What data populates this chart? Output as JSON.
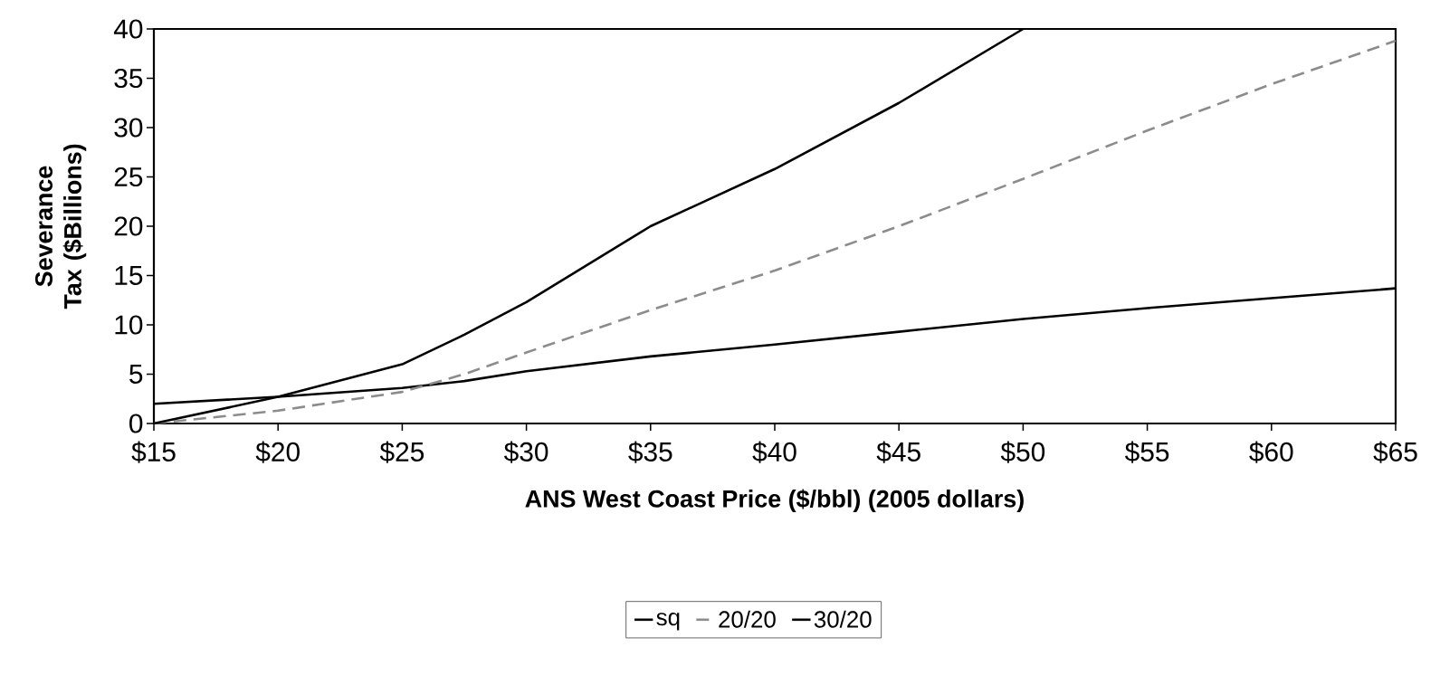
{
  "chart_data": {
    "type": "line",
    "xlabel": "ANS West Coast Price ($/bbl) (2005 dollars)",
    "ylabel": "Severance Tax ($Billions)",
    "x": [
      15,
      20,
      25,
      27.5,
      30,
      35,
      40,
      45,
      50,
      55,
      60,
      65
    ],
    "series": [
      {
        "name": "sq",
        "color": "#000000",
        "line_style": "solid",
        "values": [
          2,
          2.7,
          3.6,
          4.3,
          5.3,
          6.8,
          8,
          9.3,
          10.6,
          11.7,
          12.7,
          13.7
        ]
      },
      {
        "name": "20/20",
        "color": "#8c8c8c",
        "line_style": "dashed",
        "values": [
          0,
          1.3,
          3.2,
          5,
          7.2,
          11.5,
          15.5,
          20,
          24.8,
          29.7,
          34.4,
          38.8
        ]
      },
      {
        "name": "30/20",
        "color": "#000000",
        "line_style": "solid",
        "values": [
          0,
          2.7,
          6,
          9,
          12.3,
          20,
          25.8,
          32.5,
          40,
          null,
          null,
          null
        ]
      }
    ],
    "xlim": [
      15,
      65
    ],
    "ylim": [
      0,
      40
    ],
    "xticks": [
      {
        "value": 15,
        "label": "$15"
      },
      {
        "value": 20,
        "label": "$20"
      },
      {
        "value": 25,
        "label": "$25"
      },
      {
        "value": 30,
        "label": "$30"
      },
      {
        "value": 35,
        "label": "$35"
      },
      {
        "value": 40,
        "label": "$40"
      },
      {
        "value": 45,
        "label": "$45"
      },
      {
        "value": 50,
        "label": "$50"
      },
      {
        "value": 55,
        "label": "$55"
      },
      {
        "value": 60,
        "label": "$60"
      },
      {
        "value": 65,
        "label": "$65"
      }
    ],
    "yticks": [
      0,
      5,
      10,
      15,
      20,
      25,
      30,
      35,
      40
    ],
    "grid": false,
    "legend": "bottom",
    "marker": "none"
  }
}
